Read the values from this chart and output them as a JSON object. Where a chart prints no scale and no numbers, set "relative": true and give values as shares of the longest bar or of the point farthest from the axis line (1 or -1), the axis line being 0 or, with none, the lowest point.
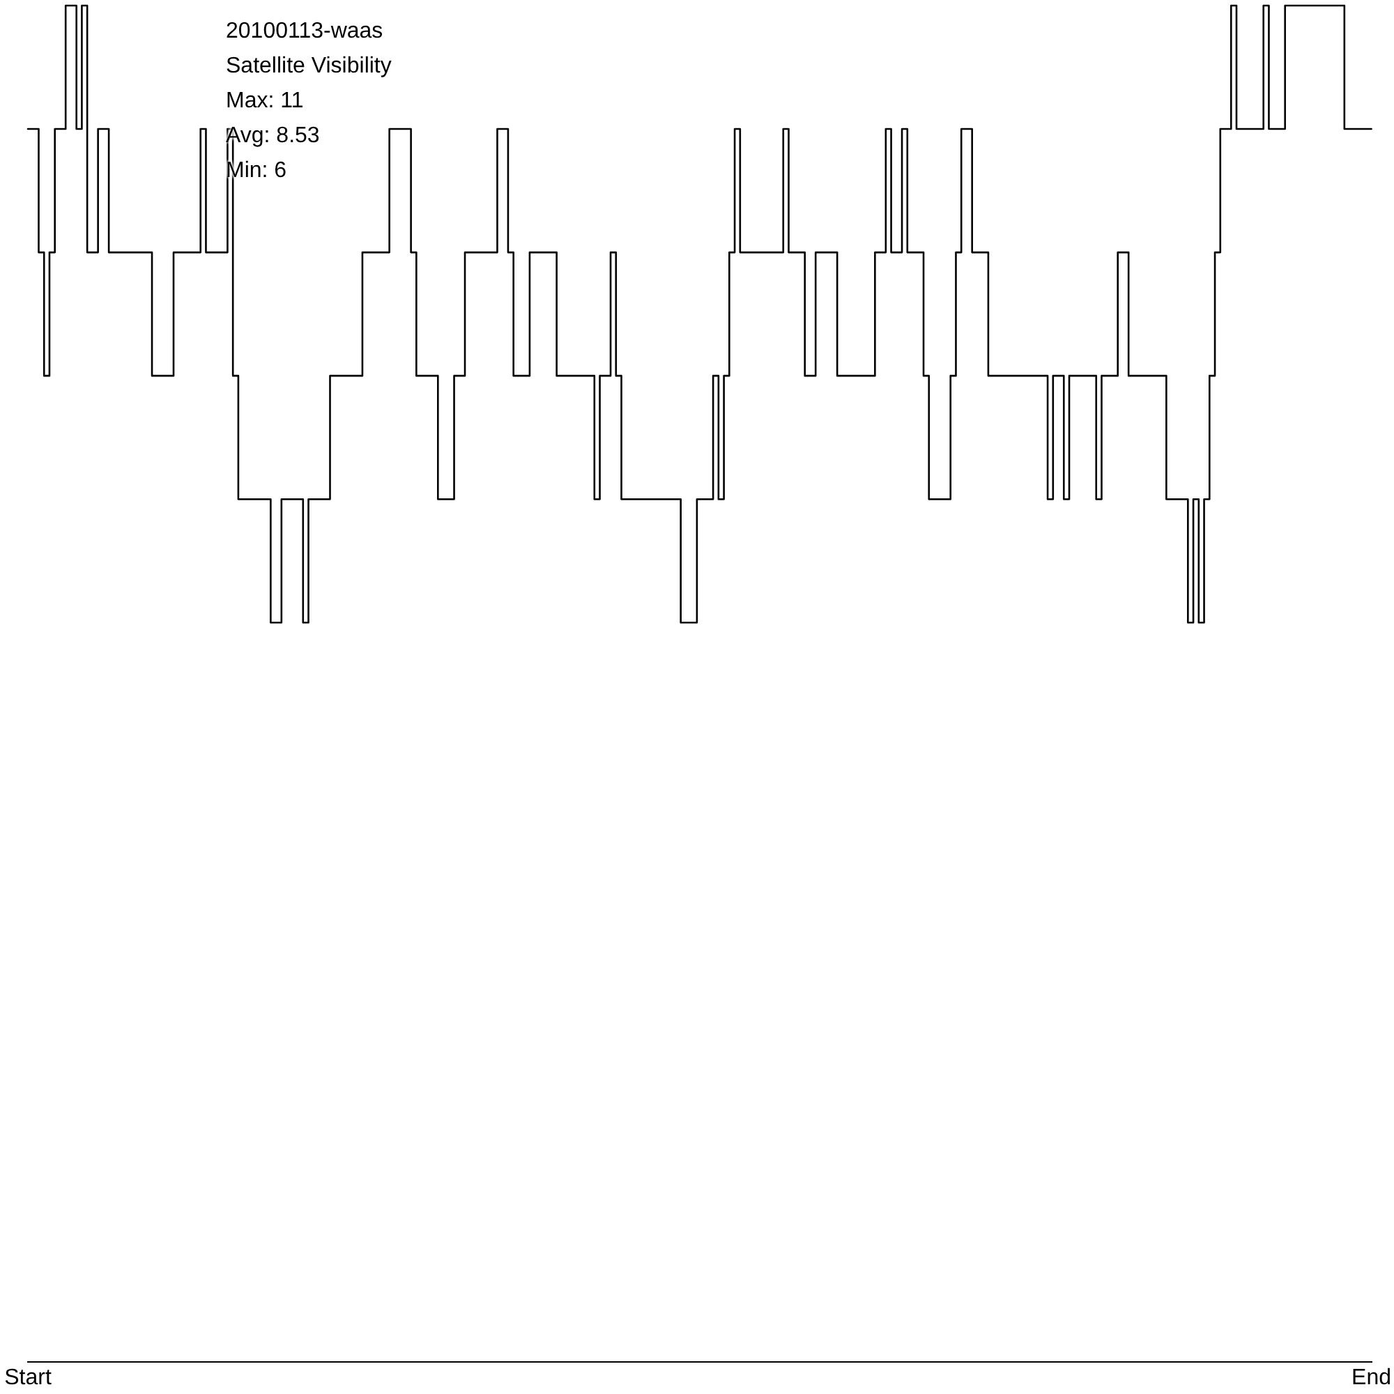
{
  "chart_data": {
    "type": "step",
    "title": "20100113-waas",
    "subtitle": "Satellite Visibility",
    "annotations": [
      "Max: 11",
      "Avg: 8.53",
      "Min: 6"
    ],
    "relative": true,
    "legend": false,
    "grid": false,
    "marker": "none",
    "line_style": "solid",
    "categories": [
      "Start",
      null,
      null,
      null,
      null,
      null,
      null,
      null,
      null,
      null,
      null,
      null,
      null,
      null,
      null,
      null,
      null,
      null,
      null,
      null,
      null,
      null,
      null,
      null,
      null,
      null,
      null,
      null,
      null,
      null,
      null,
      null,
      null,
      null,
      null,
      null,
      null,
      null,
      null,
      null,
      null,
      null,
      null,
      null,
      null,
      null,
      null,
      null,
      null,
      null,
      null,
      null,
      null,
      null,
      null,
      null,
      null,
      null,
      null,
      null,
      null,
      null,
      null,
      null,
      null,
      null,
      null,
      null,
      null,
      null,
      null,
      null,
      null,
      null,
      null,
      null,
      null,
      null,
      null,
      null,
      null,
      null,
      null,
      null,
      null,
      null,
      null,
      null,
      null,
      null,
      null,
      null,
      null,
      null,
      null,
      null,
      null,
      null,
      null,
      null,
      null,
      null,
      null,
      null,
      null,
      null,
      null,
      null,
      null,
      null,
      null,
      null,
      null,
      null,
      null,
      null,
      null,
      null,
      null,
      null,
      null,
      null,
      null,
      null,
      null,
      null,
      null,
      null,
      null,
      null,
      null,
      null,
      null,
      null,
      null,
      null,
      null,
      null,
      null,
      null,
      null,
      null,
      null,
      null,
      null,
      null,
      null,
      null,
      null,
      null,
      null,
      null,
      null,
      null,
      null,
      null,
      null,
      null,
      null,
      null,
      null,
      null,
      null,
      null,
      null,
      null,
      null,
      null,
      null,
      null,
      null,
      null,
      null,
      null,
      null,
      null,
      null,
      null,
      null,
      null,
      null,
      null,
      null,
      null,
      null,
      null,
      null,
      null,
      null,
      null,
      null,
      null,
      null,
      null,
      null,
      null,
      null,
      null,
      null,
      null,
      null,
      null,
      null,
      null,
      null,
      null,
      null,
      null,
      null,
      null,
      null,
      null,
      null,
      null,
      null,
      null,
      null,
      null,
      null,
      null,
      null,
      null,
      null,
      null,
      null,
      null,
      null,
      null,
      null,
      null,
      null,
      null,
      null,
      null,
      null,
      null,
      null,
      null,
      null,
      null,
      null,
      null,
      null,
      null,
      null,
      null,
      null,
      null,
      null,
      "End"
    ],
    "series": [
      {
        "color": "#000000",
        "values": [
          0.909,
          0.909,
          0.909,
          0.818,
          0.727,
          0.818,
          0.909,
          0.909,
          1,
          1,
          0.909,
          1,
          0.818,
          0.818,
          0.909,
          0.909,
          0.818,
          0.818,
          0.818,
          0.818,
          0.818,
          0.818,
          0.818,
          0.818,
          0.727,
          0.727,
          0.727,
          0.727,
          0.818,
          0.818,
          0.818,
          0.818,
          0.818,
          0.909,
          0.818,
          0.818,
          0.818,
          0.818,
          0.909,
          0.727,
          0.636,
          0.636,
          0.636,
          0.636,
          0.636,
          0.636,
          0.545,
          0.545,
          0.636,
          0.636,
          0.636,
          0.636,
          0.545,
          0.636,
          0.636,
          0.636,
          0.636,
          0.727,
          0.727,
          0.727,
          0.727,
          0.727,
          0.727,
          0.818,
          0.818,
          0.818,
          0.818,
          0.818,
          0.909,
          0.909,
          0.909,
          0.909,
          0.818,
          0.727,
          0.727,
          0.727,
          0.727,
          0.636,
          0.636,
          0.636,
          0.727,
          0.727,
          0.818,
          0.818,
          0.818,
          0.818,
          0.818,
          0.818,
          0.909,
          0.909,
          0.818,
          0.727,
          0.727,
          0.727,
          0.818,
          0.818,
          0.818,
          0.818,
          0.818,
          0.727,
          0.727,
          0.727,
          0.727,
          0.727,
          0.727,
          0.727,
          0.636,
          0.727,
          0.727,
          0.818,
          0.727,
          0.636,
          0.636,
          0.636,
          0.636,
          0.636,
          0.636,
          0.636,
          0.636,
          0.636,
          0.636,
          0.636,
          0.545,
          0.545,
          0.545,
          0.636,
          0.636,
          0.636,
          0.727,
          0.636,
          0.727,
          0.818,
          0.909,
          0.818,
          0.818,
          0.818,
          0.818,
          0.818,
          0.818,
          0.818,
          0.818,
          0.909,
          0.818,
          0.818,
          0.818,
          0.727,
          0.727,
          0.818,
          0.818,
          0.818,
          0.818,
          0.727,
          0.727,
          0.727,
          0.727,
          0.727,
          0.727,
          0.727,
          0.818,
          0.818,
          0.909,
          0.818,
          0.818,
          0.909,
          0.818,
          0.818,
          0.818,
          0.727,
          0.636,
          0.636,
          0.636,
          0.636,
          0.727,
          0.818,
          0.909,
          0.909,
          0.818,
          0.818,
          0.818,
          0.727,
          0.727,
          0.727,
          0.727,
          0.727,
          0.727,
          0.727,
          0.727,
          0.727,
          0.727,
          0.727,
          0.636,
          0.727,
          0.727,
          0.636,
          0.727,
          0.727,
          0.727,
          0.727,
          0.727,
          0.636,
          0.727,
          0.727,
          0.727,
          0.818,
          0.818,
          0.727,
          0.727,
          0.727,
          0.727,
          0.727,
          0.727,
          0.727,
          0.636,
          0.636,
          0.636,
          0.636,
          0.545,
          0.636,
          0.545,
          0.636,
          0.727,
          0.818,
          0.909,
          0.909,
          1,
          0.909,
          0.909,
          0.909,
          0.909,
          0.909,
          1,
          0.909,
          0.909,
          0.909,
          1,
          1,
          1,
          1,
          1,
          1,
          1,
          1,
          1,
          1,
          1,
          0.909,
          0.909,
          0.909,
          0.909,
          0.909
        ]
      }
    ]
  }
}
